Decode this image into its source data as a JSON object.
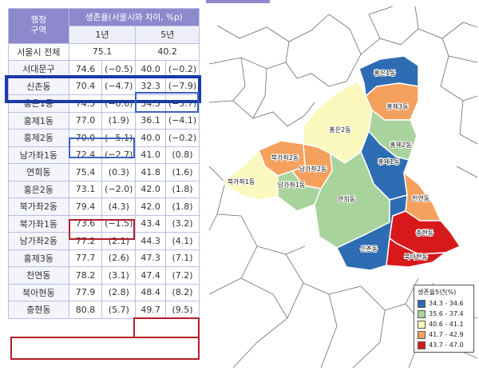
{
  "table": {
    "header": {
      "region": "행정\n구역",
      "rate_group": "생존율(서울시와 차이, %p)",
      "year1": "1년",
      "year5": "5년"
    },
    "seoul_total": {
      "label": "서울시 전체",
      "y1": "75.1",
      "y5": "40.2"
    },
    "rows": [
      {
        "name": "서대문구",
        "y1": "74.6",
        "d1": "(−0.5)",
        "y5": "40.0",
        "d5": "(−0.2)"
      },
      {
        "name": "신촌동",
        "y1": "70.4",
        "d1": "(−4.7)",
        "y5": "32.3",
        "d5": "(−7.9)"
      },
      {
        "name": "홍은1동",
        "y1": "74.5",
        "d1": "(−0.6)",
        "y5": "34.5",
        "d5": "(−5.7)"
      },
      {
        "name": "홍제1동",
        "y1": "77.0",
        "d1": "(1.9)",
        "y5": "36.1",
        "d5": "(−4.1)"
      },
      {
        "name": "홍제2동",
        "y1": "70.0",
        "d1": "(−5.1)",
        "y5": "40.0",
        "d5": "(−0.2)"
      },
      {
        "name": "남가좌1동",
        "y1": "72.4",
        "d1": "(−2.7)",
        "y5": "41.0",
        "d5": "(0.8)"
      },
      {
        "name": "연희동",
        "y1": "75.4",
        "d1": "(0.3)",
        "y5": "41.8",
        "d5": "(1.6)"
      },
      {
        "name": "홍은2동",
        "y1": "73.1",
        "d1": "(−2.0)",
        "y5": "42.0",
        "d5": "(1.8)"
      },
      {
        "name": "북가좌2동",
        "y1": "79.4",
        "d1": "(4.3)",
        "y5": "42.0",
        "d5": "(1.8)"
      },
      {
        "name": "북가좌1동",
        "y1": "73.6",
        "d1": "(−1.5)",
        "y5": "43.4",
        "d5": "(3.2)"
      },
      {
        "name": "남가좌2동",
        "y1": "77.2",
        "d1": "(2.1)",
        "y5": "44.3",
        "d5": "(4.1)"
      },
      {
        "name": "홍제3동",
        "y1": "77.7",
        "d1": "(2.6)",
        "y5": "47.3",
        "d5": "(7.1)"
      },
      {
        "name": "천연동",
        "y1": "78.2",
        "d1": "(3.1)",
        "y5": "47.4",
        "d5": "(7.2)"
      },
      {
        "name": "북아현동",
        "y1": "77.9",
        "d1": "(2.8)",
        "y5": "48.4",
        "d5": "(8.2)"
      },
      {
        "name": "충현동",
        "y1": "80.8",
        "d1": "(5.7)",
        "y5": "49.7",
        "d5": "(9.5)"
      }
    ]
  },
  "map": {
    "labels": {
      "hongeun1": "홍은1동",
      "hongje3": "홍제3동",
      "hongeun2": "홍은2동",
      "hongje2": "홍제2동",
      "bukgajwa2": "북가좌2동",
      "namgajwa2": "남가좌2동",
      "hongje1": "홍제1동",
      "bukgajwa1": "북가좌1동",
      "namgajwa1": "남가좌1동",
      "yeonhui": "연희동",
      "cheonyeon": "천연동",
      "sinchon": "신촌동",
      "chunghyeon": "충현동",
      "bukahyeon": "북아현동"
    },
    "colors": {
      "class1": "#2e6db3",
      "class2": "#a9d39c",
      "class3": "#fbf8bd",
      "class4": "#f4a15d",
      "class5": "#d7191c"
    }
  },
  "legend": {
    "title": "생존율5년(%)",
    "items": [
      {
        "label": "34.3 - 34.6",
        "color": "#2e6db3"
      },
      {
        "label": "35.6 - 37.4",
        "color": "#a9d39c"
      },
      {
        "label": "40.6 - 41.1",
        "color": "#fbf8bd"
      },
      {
        "label": "41.7 - 42.9",
        "color": "#f4a15d"
      },
      {
        "label": "43.7 - 47.0",
        "color": "#d7191c"
      }
    ]
  }
}
